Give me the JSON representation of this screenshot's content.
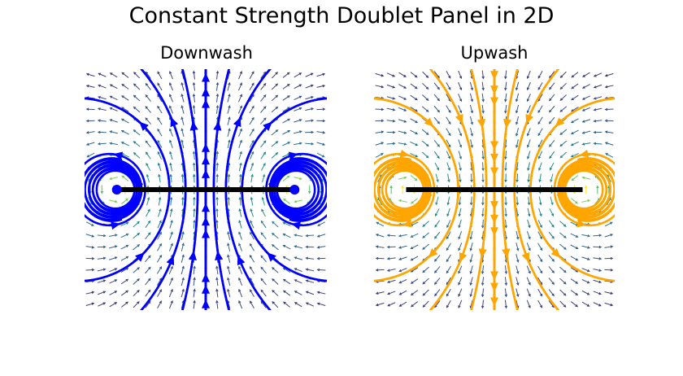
{
  "figure": {
    "suptitle": "Constant Strength Doublet Panel in 2D"
  },
  "chart_data": [
    {
      "type": "streamplot",
      "title": "Downwash",
      "xlabel": "",
      "ylabel": "",
      "xlim": [
        -1.5,
        1.5
      ],
      "ylim": [
        -1.5,
        1.5
      ],
      "axes_visible": false,
      "grid": false,
      "panel": {
        "x": [
          -1.1,
          1.1
        ],
        "y": [
          0,
          0
        ],
        "color": "#000000"
      },
      "stream_color": "#0000ff",
      "quiver_colormap": "viridis",
      "flow_direction": "downward through panel"
    },
    {
      "type": "streamplot",
      "title": "Upwash",
      "xlabel": "",
      "ylabel": "",
      "xlim": [
        -1.5,
        1.5
      ],
      "ylim": [
        -1.5,
        1.5
      ],
      "axes_visible": false,
      "grid": false,
      "panel": {
        "x": [
          -1.1,
          1.1
        ],
        "y": [
          0,
          0
        ],
        "color": "#000000"
      },
      "stream_color": "#ffa500",
      "quiver_colormap": "viridis",
      "flow_direction": "upward through panel"
    }
  ]
}
